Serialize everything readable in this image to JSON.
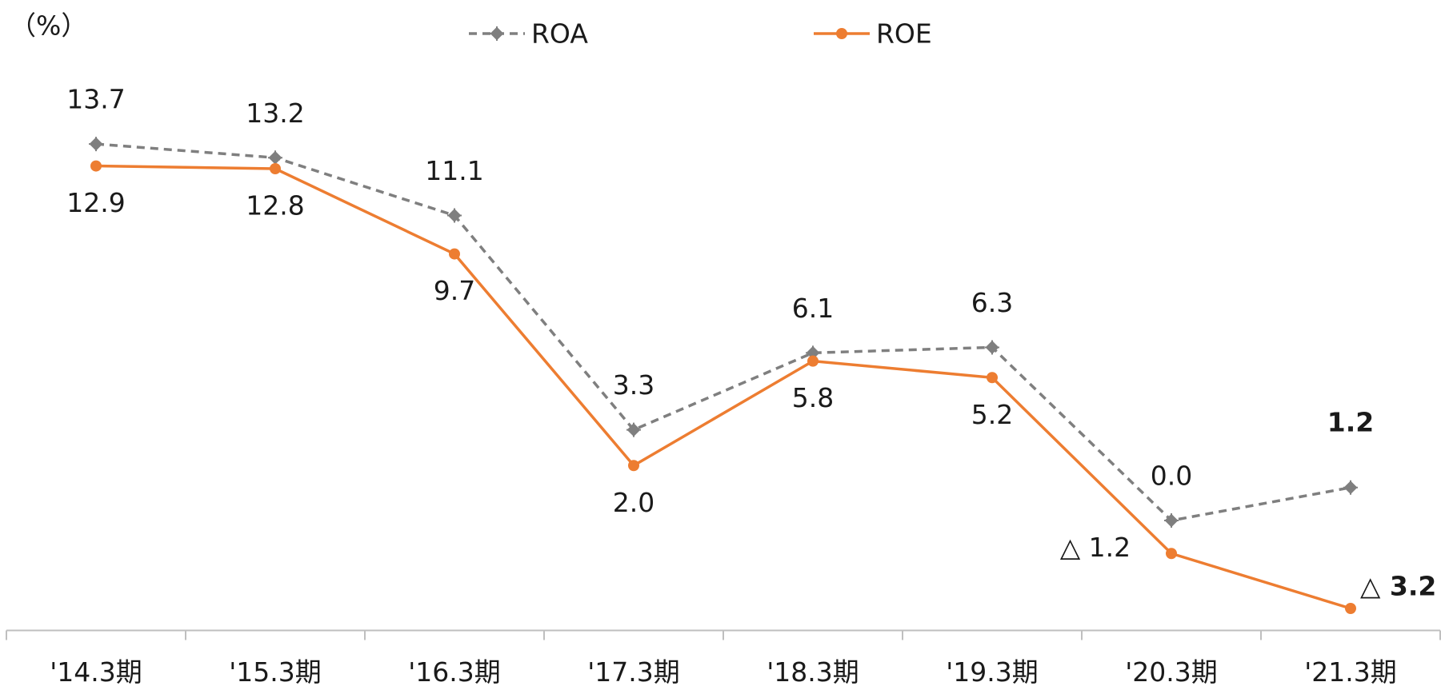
{
  "chart_data": {
    "type": "line",
    "y_label": "（%）",
    "categories": [
      "'14.3期",
      "'15.3期",
      "'16.3期",
      "'17.3期",
      "'18.3期",
      "'19.3期",
      "'20.3期",
      "'21.3期"
    ],
    "series": [
      {
        "name": "ROA",
        "color": "#7f7f7f",
        "dash": true,
        "values": [
          13.7,
          13.2,
          11.1,
          3.3,
          6.1,
          6.3,
          0.0,
          1.2
        ],
        "value_labels": [
          "13.7",
          "13.2",
          "11.1",
          "3.3",
          "6.1",
          "6.3",
          "0.0",
          "1.2"
        ]
      },
      {
        "name": "ROE",
        "color": "#ed7d31",
        "dash": false,
        "values": [
          12.9,
          12.8,
          9.7,
          2.0,
          5.8,
          5.2,
          -1.2,
          -3.2
        ],
        "value_labels": [
          "12.9",
          "12.8",
          "9.7",
          "2.0",
          "5.8",
          "5.2",
          "△ 1.2",
          "△ 3.2"
        ]
      }
    ],
    "ylim": [
      -4,
      16
    ],
    "legend": "top"
  }
}
